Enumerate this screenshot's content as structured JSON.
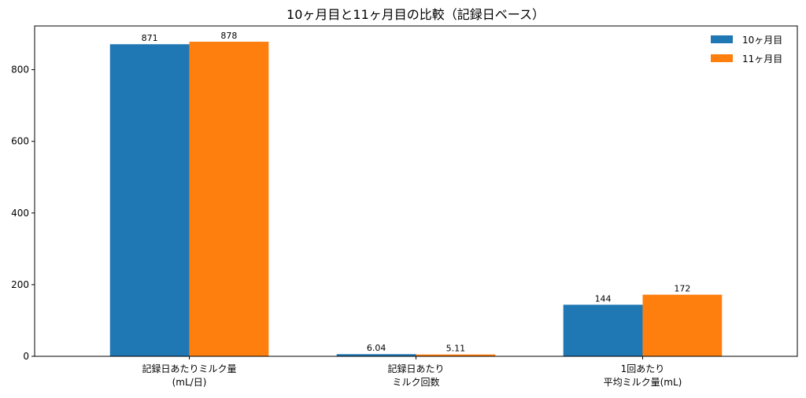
{
  "chart_data": {
    "type": "bar",
    "title": "10ヶ月目と11ヶ月目の比較（記録日ベース）",
    "xlabel": "",
    "ylabel": "",
    "categories": [
      [
        "記録日あたりミルク量",
        "(mL/日)"
      ],
      [
        "記録日あたり",
        "ミルク回数"
      ],
      [
        "1回あたり",
        "平均ミルク量(mL)"
      ]
    ],
    "series": [
      {
        "name": "10ヶ月目",
        "color": "#1f77b4",
        "values": [
          871,
          6.04,
          144
        ],
        "labels": [
          "871",
          "6.04",
          "144"
        ]
      },
      {
        "name": "11ヶ月目",
        "color": "#ff7f0e",
        "values": [
          878,
          5.11,
          172
        ],
        "labels": [
          "878",
          "5.11",
          "172"
        ]
      }
    ],
    "ylim": [
      0,
      922
    ],
    "yticks": [
      0,
      200,
      400,
      600,
      800
    ],
    "grid": false,
    "legend": "top-right"
  }
}
